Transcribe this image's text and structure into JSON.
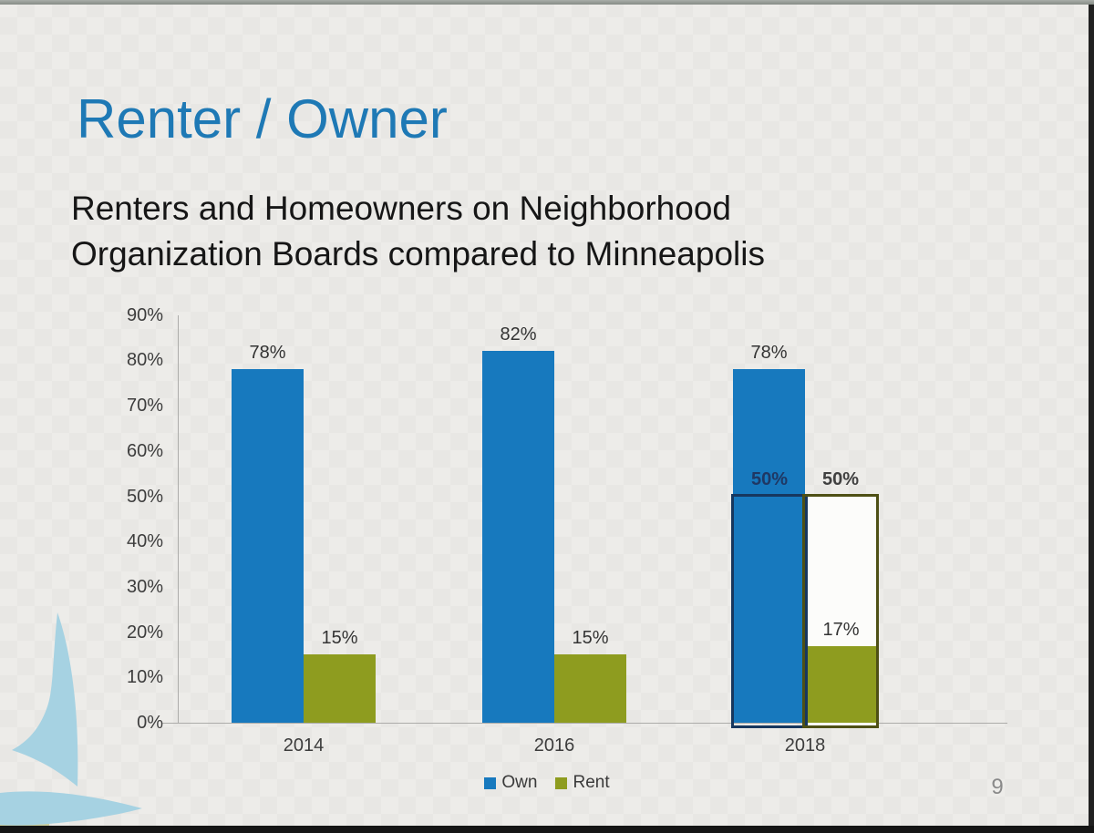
{
  "frame": {
    "page_number": "9"
  },
  "slide": {
    "title": "Renter / Owner",
    "subtitle_line1": "Renters and Homeowners on Neighborhood",
    "subtitle_line2": "Organization Boards compared to Minneapolis"
  },
  "chart_data": {
    "type": "bar",
    "title": "",
    "xlabel": "",
    "ylabel": "",
    "categories": [
      "2014",
      "2016",
      "2018"
    ],
    "series": [
      {
        "name": "Own",
        "color": "#1779be",
        "values": [
          78,
          82,
          78
        ],
        "labels": [
          "78%",
          "82%",
          "78%"
        ]
      },
      {
        "name": "Rent",
        "color": "#8e9c1f",
        "values": [
          15,
          15,
          17
        ],
        "labels": [
          "15%",
          "15%",
          "17%"
        ]
      }
    ],
    "y_axis": {
      "min": 0,
      "max": 90,
      "step": 10,
      "ticks": [
        "0%",
        "10%",
        "20%",
        "30%",
        "40%",
        "50%",
        "60%",
        "70%",
        "80%",
        "90%"
      ]
    },
    "grid": "off",
    "legend_position": "bottom-center",
    "annotations": {
      "reference_boxes": [
        {
          "category": "2018",
          "series": "Own",
          "value": 50,
          "label": "50%",
          "border_color": "#17375e",
          "fill": "transparent",
          "label_color": "#1f3864"
        },
        {
          "category": "2018",
          "series": "Rent",
          "value": 50,
          "label": "50%",
          "border_color": "#4e5015",
          "fill": "#fcfcfa",
          "label_color": "#404040"
        }
      ]
    }
  },
  "colors": {
    "title_accent": "#1e79b5",
    "own_bar": "#1779be",
    "rent_bar": "#8e9c1f",
    "slide_background": "#edece9",
    "axis_line": "#acacaa",
    "logo_blue": "#a6d2e2",
    "logo_olive": "#cdd09e"
  },
  "icons": {
    "logo": "sailboat-logo"
  }
}
